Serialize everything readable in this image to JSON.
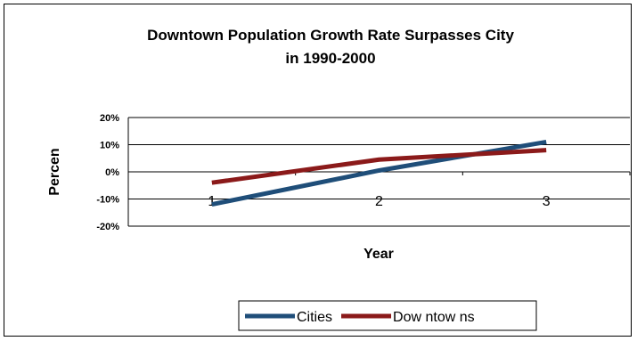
{
  "chart_data": {
    "type": "line",
    "title_line1": "Downtown Population Growth Rate Surpasses City",
    "title_line2": "in 1990-2000",
    "xlabel": "Year",
    "ylabel": "Percen",
    "x": [
      "1",
      "2",
      "3"
    ],
    "y_ticks": [
      "20%",
      "10%",
      "0%",
      "-10%",
      "-20%"
    ],
    "ylim": [
      -20,
      20
    ],
    "grid": "horizontal",
    "legend_position": "bottom",
    "series": [
      {
        "name": "Cities",
        "color": "#1F4E79",
        "values": [
          -12,
          0.5,
          11
        ]
      },
      {
        "name": "Dow ntow ns",
        "color": "#8B1A1A",
        "values": [
          -4,
          4.5,
          8
        ]
      }
    ]
  }
}
